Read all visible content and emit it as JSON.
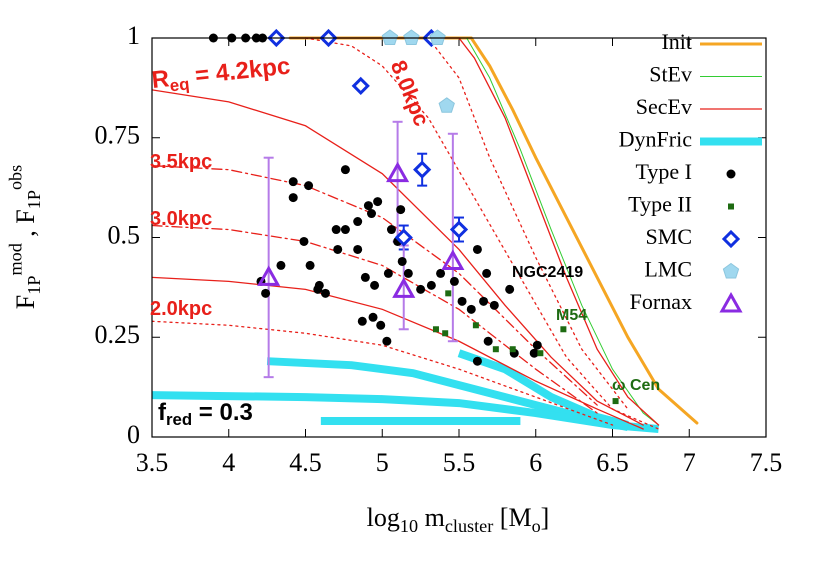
{
  "chart_data": {
    "type": "line",
    "xlabel": [
      [
        "log",
        ""
      ],
      [
        "10",
        "sub"
      ],
      [
        " m",
        ""
      ],
      [
        "cluster",
        "sub"
      ],
      [
        " [M",
        ""
      ],
      [
        "o",
        "sub"
      ],
      [
        "]",
        ""
      ]
    ],
    "ylabel": [
      [
        "F",
        ""
      ],
      [
        "1P",
        "sub"
      ],
      [
        "mod",
        "sup"
      ],
      [
        " , F",
        ""
      ],
      [
        "1P",
        "sub"
      ],
      [
        "obs",
        "sup"
      ]
    ],
    "xlim": [
      3.5,
      7.5
    ],
    "xticks": [
      3.5,
      4,
      4.5,
      5,
      5.5,
      6,
      6.5,
      7,
      7.5
    ],
    "ylim": [
      0,
      1
    ],
    "yticks": [
      0,
      0.25,
      0.5,
      0.75,
      1
    ],
    "legend": "top-right",
    "series": [
      {
        "name": "Init",
        "color": "#f5a623",
        "kind": "line",
        "width": 3,
        "curves": [
          {
            "style": "solid",
            "x": [
              4.4,
              5.0,
              5.58,
              5.7,
              5.85,
              6.0,
              6.2,
              6.4,
              6.6,
              6.8,
              7.05
            ],
            "y": [
              1,
              1,
              1,
              0.93,
              0.82,
              0.7,
              0.55,
              0.4,
              0.25,
              0.12,
              0.035
            ]
          }
        ]
      },
      {
        "name": "StEv",
        "color": "#33cc33",
        "kind": "line",
        "width": 1,
        "curves": [
          {
            "style": "solid",
            "x": [
              5.55,
              5.7,
              5.9,
              6.1,
              6.3,
              6.5,
              6.7,
              6.8
            ],
            "y": [
              1,
              0.9,
              0.72,
              0.52,
              0.33,
              0.17,
              0.06,
              0.03
            ]
          }
        ]
      },
      {
        "name": "SecEv",
        "color": "#e8201a",
        "kind": "line",
        "width": 1.3,
        "curves": [
          {
            "style": "solid",
            "x": [
              4.4,
              5.0,
              5.5,
              5.6,
              5.8,
              6.0,
              6.2,
              6.4,
              6.6,
              6.8
            ],
            "y": [
              1,
              1,
              1,
              0.95,
              0.8,
              0.6,
              0.4,
              0.22,
              0.1,
              0.03
            ]
          },
          {
            "style": "solid",
            "x": [
              3.5,
              4.0,
              4.5,
              5.0,
              5.5,
              5.8,
              6.1,
              6.4,
              6.7
            ],
            "y": [
              0.87,
              0.84,
              0.78,
              0.66,
              0.47,
              0.33,
              0.2,
              0.09,
              0.03
            ]
          },
          {
            "style": "solid",
            "x": [
              3.5,
              4.0,
              4.5,
              5.0,
              5.5,
              6.0,
              6.4,
              6.7
            ],
            "y": [
              0.4,
              0.39,
              0.37,
              0.32,
              0.24,
              0.14,
              0.07,
              0.02
            ]
          },
          {
            "style": "dotted",
            "x": [
              4.5,
              4.8,
              5.0,
              5.3,
              5.6,
              5.9,
              6.2,
              6.5,
              6.8
            ],
            "y": [
              1,
              0.98,
              0.93,
              0.8,
              0.6,
              0.4,
              0.2,
              0.07,
              0.02
            ]
          },
          {
            "style": "dotted",
            "x": [
              5.3,
              5.5,
              5.7,
              6.0,
              6.3,
              6.6
            ],
            "y": [
              1,
              0.9,
              0.7,
              0.45,
              0.22,
              0.07
            ]
          },
          {
            "style": "dotted",
            "x": [
              3.5,
              4.0,
              4.5,
              5.0,
              5.5,
              6.0,
              6.5
            ],
            "y": [
              0.29,
              0.28,
              0.26,
              0.23,
              0.17,
              0.1,
              0.03
            ]
          },
          {
            "style": "dashdot",
            "x": [
              3.5,
              4.0,
              4.5,
              5.0,
              5.5,
              6.0,
              6.4
            ],
            "y": [
              0.68,
              0.67,
              0.63,
              0.55,
              0.41,
              0.22,
              0.08
            ]
          },
          {
            "style": "dashdot",
            "x": [
              3.5,
              4.0,
              4.5,
              5.0,
              5.5,
              6.0,
              6.4
            ],
            "y": [
              0.53,
              0.52,
              0.49,
              0.43,
              0.32,
              0.17,
              0.06
            ]
          }
        ]
      },
      {
        "name": "DynFric",
        "color": "#33e0f0",
        "kind": "line",
        "width": 8,
        "curves": [
          {
            "style": "solid",
            "x": [
              4.25,
              4.8,
              5.2,
              5.6,
              6.0,
              6.4,
              6.6
            ],
            "y": [
              0.19,
              0.18,
              0.16,
              0.12,
              0.08,
              0.04,
              0.025
            ]
          },
          {
            "style": "solid",
            "x": [
              3.5,
              4.5,
              5.0,
              5.5,
              6.0,
              6.5,
              6.8
            ],
            "y": [
              0.105,
              0.1,
              0.095,
              0.085,
              0.06,
              0.03,
              0.02
            ]
          },
          {
            "style": "solid",
            "x": [
              4.6,
              5.9
            ],
            "y": [
              0.04,
              0.04
            ]
          },
          {
            "style": "solid",
            "x": [
              5.5,
              5.8,
              6.1,
              6.4,
              6.6
            ],
            "y": [
              0.21,
              0.17,
              0.1,
              0.05,
              0.03
            ]
          }
        ]
      },
      {
        "name": "Type  I",
        "color": "#000000",
        "kind": "points",
        "marker": "circle",
        "x": [
          3.9,
          4.02,
          4.11,
          4.18,
          4.22,
          4.21,
          4.24,
          4.42,
          4.52,
          4.42,
          4.76,
          4.49,
          4.34,
          4.53,
          4.58,
          4.63,
          4.59,
          4.7,
          4.76,
          4.84,
          4.91,
          4.93,
          4.97,
          4.71,
          4.84,
          4.89,
          4.95,
          5.04,
          4.87,
          4.94,
          4.99,
          5.03,
          5.1,
          5.13,
          5.17,
          5.25,
          5.32,
          5.38,
          5.47,
          5.52,
          5.58,
          5.66,
          5.06,
          5.12,
          5.62,
          5.68,
          5.73,
          5.69,
          5.62,
          5.83,
          5.86,
          6.01,
          5.99
        ],
        "y": [
          1,
          1,
          1,
          1,
          1,
          0.39,
          0.36,
          0.64,
          0.63,
          0.6,
          0.67,
          0.49,
          0.43,
          0.43,
          0.37,
          0.36,
          0.38,
          0.52,
          0.52,
          0.54,
          0.58,
          0.56,
          0.59,
          0.47,
          0.47,
          0.4,
          0.38,
          0.41,
          0.29,
          0.3,
          0.28,
          0.24,
          0.49,
          0.44,
          0.41,
          0.37,
          0.38,
          0.41,
          0.39,
          0.34,
          0.32,
          0.34,
          0.52,
          0.57,
          0.47,
          0.41,
          0.33,
          0.24,
          0.19,
          0.37,
          0.21,
          0.23,
          0.21
        ]
      },
      {
        "name": "Type II",
        "color": "#1e6b12",
        "kind": "points",
        "marker": "square",
        "x": [
          5.35,
          5.43,
          5.41,
          5.61,
          5.74,
          5.85,
          6.03,
          6.18,
          6.52
        ],
        "y": [
          0.27,
          0.36,
          0.26,
          0.28,
          0.22,
          0.22,
          0.21,
          0.27,
          0.09
        ]
      },
      {
        "name": "SMC",
        "color": "#1030e0",
        "kind": "points",
        "marker": "diamond",
        "x": [
          4.31,
          4.65,
          5.32,
          4.86,
          5.26,
          5.14,
          5.5
        ],
        "y": [
          1,
          1,
          1,
          0.88,
          0.67,
          0.5,
          0.52
        ],
        "y_low": [
          null,
          null,
          null,
          null,
          0.63,
          0.47,
          0.49
        ],
        "y_high": [
          null,
          null,
          null,
          null,
          0.71,
          0.53,
          0.55
        ]
      },
      {
        "name": "LMC",
        "color": "#a0d8ef",
        "kind": "points",
        "marker": "pentagon",
        "x": [
          5.05,
          5.19,
          5.36,
          5.42
        ],
        "y": [
          1,
          1,
          1,
          0.83
        ]
      },
      {
        "name": "Fornax",
        "color": "#8a2be2",
        "error_color": "#b57be8",
        "kind": "points",
        "marker": "triangle",
        "x": [
          4.26,
          5.1,
          5.14,
          5.46
        ],
        "y": [
          0.4,
          0.66,
          0.37,
          0.44
        ],
        "y_low": [
          0.15,
          0.49,
          0.27,
          0.24
        ],
        "y_high": [
          0.7,
          0.79,
          0.48,
          0.76
        ]
      }
    ],
    "annotations": [
      {
        "parts": [
          [
            "R",
            ""
          ],
          [
            "eq",
            "sub"
          ],
          [
            " = 4.2kpc",
            ""
          ]
        ],
        "color": "#e8201a"
      },
      {
        "parts": [
          [
            "8.0kpc",
            ""
          ]
        ],
        "color": "#e8201a"
      },
      {
        "parts": [
          [
            "3.5kpc",
            ""
          ]
        ],
        "color": "#e8201a"
      },
      {
        "parts": [
          [
            "3.0kpc",
            ""
          ]
        ],
        "color": "#e8201a"
      },
      {
        "parts": [
          [
            "2.0kpc",
            ""
          ]
        ],
        "color": "#e8201a"
      },
      {
        "parts": [
          [
            "f",
            ""
          ],
          [
            "red",
            "sub"
          ],
          [
            " = 0.3",
            ""
          ]
        ],
        "color": "#000000"
      },
      {
        "parts": [
          [
            "NGC2419",
            ""
          ]
        ],
        "color": "#000000"
      },
      {
        "parts": [
          [
            "M54",
            ""
          ]
        ],
        "color": "#1e6b12"
      },
      {
        "parts": [
          [
            "ω Cen",
            ""
          ]
        ],
        "color": "#1e6b12"
      }
    ]
  }
}
